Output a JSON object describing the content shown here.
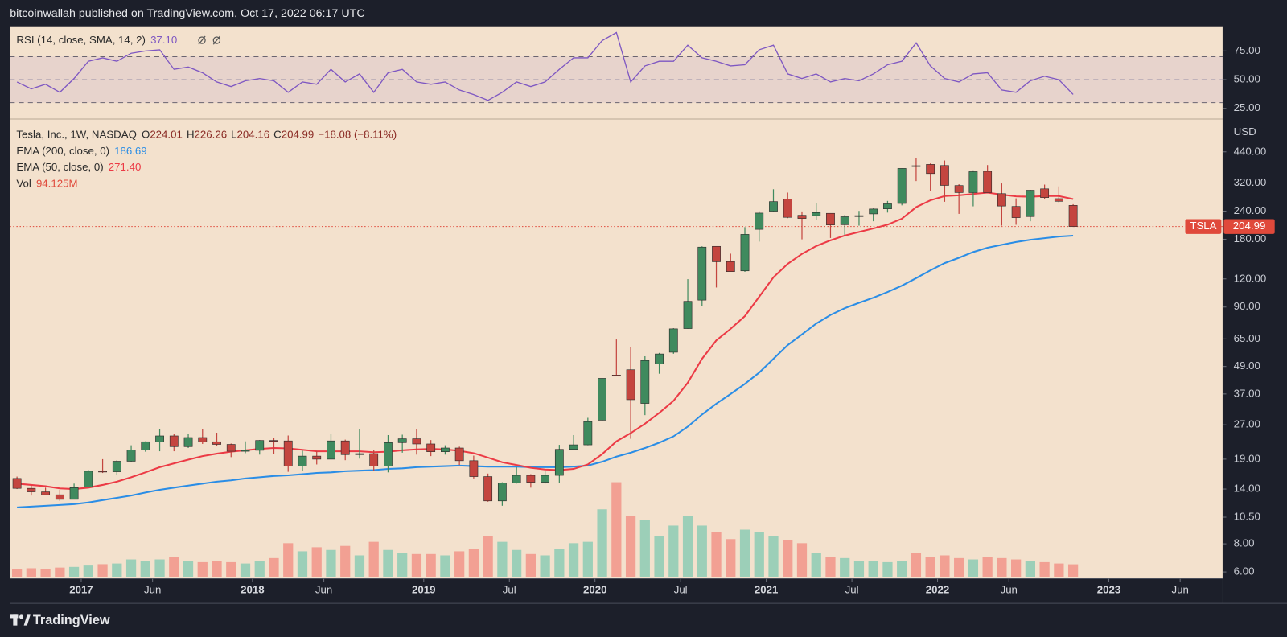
{
  "header": {
    "text": "bitcoinwallah published on TradingView.com, Oct 17, 2022 06:17 UTC"
  },
  "footer": {
    "brand": "TradingView"
  },
  "chart_data": [
    {
      "type": "line",
      "title": "RSI (14, close, SMA, 14, 2)",
      "last_label": "37.10",
      "color": "#7e57c2",
      "xlim": [
        "2016-08",
        "2023-09"
      ],
      "ylim": [
        15.7,
        96.4
      ],
      "yticks": [
        {
          "value": 75,
          "label": "75.00"
        },
        {
          "value": 50,
          "label": "50.00"
        },
        {
          "value": 25,
          "label": "25.00"
        }
      ],
      "bands": [
        30,
        70
      ],
      "midline": 50,
      "x": [
        "2016-08",
        "2016-09",
        "2016-10",
        "2016-11",
        "2016-12",
        "2017-01",
        "2017-02",
        "2017-03",
        "2017-04",
        "2017-05",
        "2017-06",
        "2017-07",
        "2017-08",
        "2017-09",
        "2017-10",
        "2017-11",
        "2017-12",
        "2018-01",
        "2018-02",
        "2018-03",
        "2018-04",
        "2018-05",
        "2018-06",
        "2018-07",
        "2018-08",
        "2018-09",
        "2018-10",
        "2018-11",
        "2018-12",
        "2019-01",
        "2019-02",
        "2019-03",
        "2019-04",
        "2019-05",
        "2019-06",
        "2019-07",
        "2019-08",
        "2019-09",
        "2019-10",
        "2019-11",
        "2019-12",
        "2020-01",
        "2020-02",
        "2020-03",
        "2020-04",
        "2020-05",
        "2020-06",
        "2020-07",
        "2020-08",
        "2020-09",
        "2020-10",
        "2020-11",
        "2020-12",
        "2021-01",
        "2021-02",
        "2021-03",
        "2021-04",
        "2021-05",
        "2021-06",
        "2021-07",
        "2021-08",
        "2021-09",
        "2021-10",
        "2021-11",
        "2021-12",
        "2022-01",
        "2022-02",
        "2022-03",
        "2022-04",
        "2022-05",
        "2022-06",
        "2022-07",
        "2022-08",
        "2022-09",
        "2022-10"
      ],
      "values": [
        48,
        42,
        46,
        39,
        51,
        66,
        69,
        66,
        73,
        75,
        76,
        59,
        61,
        56,
        48,
        44,
        49,
        51,
        49,
        39,
        48,
        46,
        59,
        48,
        55,
        39,
        56,
        59,
        48,
        46,
        48,
        41,
        37,
        32,
        39,
        48,
        44,
        48,
        59,
        69,
        69,
        84,
        91,
        48,
        62,
        66,
        66,
        80,
        69,
        66,
        62,
        63,
        76,
        80,
        55,
        51,
        55,
        48,
        51,
        49,
        55,
        63,
        66,
        82,
        62,
        51,
        48,
        55,
        56,
        41,
        39,
        49,
        53,
        50,
        37.1
      ]
    },
    {
      "type": "candlestick",
      "title": "Tesla, Inc., 1W, NASDAQ",
      "ohlc": [
        {
          "key": "O",
          "value": 224.01
        },
        {
          "key": "H",
          "value": 226.26
        },
        {
          "key": "L",
          "value": 204.16
        },
        {
          "key": "C",
          "value": 204.99
        }
      ],
      "change": "−18.08 (−8.11%)",
      "currency": "USD",
      "log_scale": true,
      "up_color": "#3f8a5e",
      "down_color": "#c4453f",
      "xlim": [
        "2016-08",
        "2023-09"
      ],
      "xticks": [
        {
          "value": "2017-01",
          "label": "2017"
        },
        {
          "value": "2017-06",
          "label": "Jun"
        },
        {
          "value": "2018-01",
          "label": "2018"
        },
        {
          "value": "2018-06",
          "label": "Jun"
        },
        {
          "value": "2019-01",
          "label": "2019"
        },
        {
          "value": "2019-07",
          "label": "Jul"
        },
        {
          "value": "2020-01",
          "label": "2020"
        },
        {
          "value": "2020-07",
          "label": "Jul"
        },
        {
          "value": "2021-01",
          "label": "2021"
        },
        {
          "value": "2021-07",
          "label": "Jul"
        },
        {
          "value": "2022-01",
          "label": "2022"
        },
        {
          "value": "2022-06",
          "label": "Jun"
        },
        {
          "value": "2023-01",
          "label": "2023"
        },
        {
          "value": "2023-06",
          "label": "Jun"
        }
      ],
      "ylim": [
        5.6,
        615
      ],
      "yticks": [
        {
          "value": 440,
          "label": "440.00"
        },
        {
          "value": 320,
          "label": "320.00"
        },
        {
          "value": 240,
          "label": "240.00"
        },
        {
          "value": 180,
          "label": "180.00"
        },
        {
          "value": 120,
          "label": "120.00"
        },
        {
          "value": 90,
          "label": "90.00"
        },
        {
          "value": 65,
          "label": "65.00"
        },
        {
          "value": 49,
          "label": "49.00"
        },
        {
          "value": 37,
          "label": "37.00"
        },
        {
          "value": 27,
          "label": "27.00"
        },
        {
          "value": 19,
          "label": "19.00"
        },
        {
          "value": 14,
          "label": "14.00"
        },
        {
          "value": 10.5,
          "label": "10.50"
        },
        {
          "value": 8,
          "label": "8.00"
        },
        {
          "value": 6,
          "label": "6.00"
        }
      ],
      "x": [
        "2016-08",
        "2016-09",
        "2016-10",
        "2016-11",
        "2016-12",
        "2017-01",
        "2017-02",
        "2017-03",
        "2017-04",
        "2017-05",
        "2017-06",
        "2017-07",
        "2017-08",
        "2017-09",
        "2017-10",
        "2017-11",
        "2017-12",
        "2018-01",
        "2018-02",
        "2018-03",
        "2018-04",
        "2018-05",
        "2018-06",
        "2018-07",
        "2018-08",
        "2018-09",
        "2018-10",
        "2018-11",
        "2018-12",
        "2019-01",
        "2019-02",
        "2019-03",
        "2019-04",
        "2019-05",
        "2019-06",
        "2019-07",
        "2019-08",
        "2019-09",
        "2019-10",
        "2019-11",
        "2019-12",
        "2020-01",
        "2020-02",
        "2020-03",
        "2020-04",
        "2020-05",
        "2020-06",
        "2020-07",
        "2020-08",
        "2020-09",
        "2020-10",
        "2020-11",
        "2020-12",
        "2021-01",
        "2021-02",
        "2021-03",
        "2021-04",
        "2021-05",
        "2021-06",
        "2021-07",
        "2021-08",
        "2021-09",
        "2021-10",
        "2021-11",
        "2021-12",
        "2022-01",
        "2022-02",
        "2022-03",
        "2022-04",
        "2022-05",
        "2022-06",
        "2022-07",
        "2022-08",
        "2022-09",
        "2022-10"
      ],
      "open": [
        15.6,
        14.1,
        13.6,
        13.2,
        12.6,
        14.3,
        16.8,
        16.7,
        18.6,
        20.9,
        22.7,
        24.1,
        21.6,
        23.7,
        22.7,
        22.1,
        20.6,
        20.8,
        23.0,
        22.9,
        17.7,
        19.6,
        19.0,
        22.9,
        19.9,
        20.1,
        17.7,
        22.5,
        23.4,
        22.2,
        20.5,
        21.3,
        18.7,
        15.9,
        12.4,
        14.9,
        16.1,
        15.0,
        16.1,
        21.0,
        22.0,
        28.3,
        44.9,
        47.4,
        33.6,
        50.3,
        56.7,
        72.2,
        96.6,
        167.4,
        143.3,
        130.3,
        199.2,
        239.8,
        271.7,
        230.0,
        229.0,
        234.6,
        208.9,
        227.0,
        233.3,
        245.6,
        259.5,
        381.7,
        386.9,
        382.6,
        311.7,
        289.9,
        360.4,
        286.9,
        251.7,
        227.0,
        301.3,
        272.6,
        254.5
      ],
      "high": [
        15.9,
        14.5,
        14.2,
        13.9,
        14.8,
        17.0,
        19.0,
        18.8,
        21.9,
        22.8,
        25.9,
        24.6,
        24.7,
        25.9,
        24.9,
        22.3,
        22.8,
        23.1,
        23.7,
        24.2,
        20.7,
        20.7,
        24.6,
        23.2,
        25.9,
        20.9,
        24.3,
        24.4,
        25.9,
        23.1,
        21.9,
        21.6,
        19.7,
        16.4,
        15.0,
        17.5,
        16.3,
        16.8,
        22.0,
        24.3,
        29.0,
        43.5,
        64.6,
        59.9,
        54.4,
        56.3,
        72.5,
        119.7,
        167.5,
        167.5,
        155.3,
        203.8,
        239.6,
        300.1,
        290.0,
        239.2,
        260.3,
        235.1,
        230.6,
        240.5,
        246.8,
        266.3,
        371.7,
        414.5,
        390.9,
        402.7,
        315.9,
        364.1,
        384.3,
        318.5,
        273.5,
        298.3,
        314.7,
        309.0,
        257.5
      ],
      "low": [
        14.0,
        13.1,
        13.2,
        12.4,
        12.6,
        14.2,
        16.5,
        16.1,
        18.5,
        20.5,
        20.6,
        20.6,
        21.3,
        22.2,
        21.7,
        19.4,
        20.2,
        19.9,
        20.0,
        16.7,
        16.8,
        18.0,
        19.0,
        18.8,
        19.1,
        16.8,
        16.6,
        20.3,
        19.9,
        19.6,
        19.9,
        17.9,
        15.6,
        12.3,
        11.8,
        14.8,
        14.2,
        14.8,
        14.9,
        20.9,
        21.9,
        28.0,
        44.5,
        23.4,
        29.8,
        45.5,
        55.8,
        72.0,
        91.0,
        109.9,
        129.0,
        129.0,
        175.7,
        239.1,
        223.3,
        179.8,
        219.8,
        182.3,
        187.6,
        206.9,
        216.3,
        236.4,
        254.5,
        326.2,
        295.4,
        264.0,
        233.3,
        252.0,
        290.3,
        206.9,
        208.7,
        216.2,
        271.8,
        262.5,
        204.16
      ],
      "close": [
        14.1,
        13.6,
        13.2,
        12.6,
        14.2,
        16.8,
        16.7,
        18.6,
        20.9,
        22.7,
        24.1,
        21.6,
        23.7,
        22.7,
        22.1,
        20.6,
        20.8,
        23.0,
        22.9,
        17.7,
        19.6,
        19.0,
        22.9,
        19.9,
        20.1,
        17.7,
        22.5,
        23.4,
        22.2,
        20.5,
        21.3,
        18.7,
        15.9,
        12.4,
        14.9,
        16.1,
        15.0,
        16.1,
        21.0,
        22.0,
        27.9,
        43.4,
        44.5,
        34.9,
        52.1,
        55.7,
        72.0,
        95.4,
        166.1,
        143.0,
        129.3,
        189.2,
        235.2,
        264.5,
        225.2,
        222.6,
        236.5,
        208.4,
        226.6,
        229.1,
        245.2,
        258.5,
        371.3,
        381.6,
        352.3,
        312.2,
        290.1,
        359.2,
        290.3,
        252.8,
        224.5,
        297.1,
        275.6,
        265.3,
        204.99
      ],
      "lines": [
        {
          "name": "EMA (200, close, 0)",
          "color": "#2a8de6",
          "last_label": "186.69",
          "values": [
            11.6,
            11.7,
            11.8,
            11.9,
            12.0,
            12.2,
            12.5,
            12.8,
            13.1,
            13.5,
            13.9,
            14.2,
            14.5,
            14.8,
            15.1,
            15.3,
            15.6,
            15.8,
            16.0,
            16.1,
            16.3,
            16.5,
            16.6,
            16.8,
            16.9,
            17.0,
            17.2,
            17.3,
            17.5,
            17.6,
            17.7,
            17.8,
            17.7,
            17.6,
            17.6,
            17.6,
            17.5,
            17.5,
            17.5,
            17.6,
            17.8,
            18.5,
            19.5,
            20.3,
            21.3,
            22.5,
            24.0,
            26.5,
            30,
            33.5,
            37,
            41,
            46,
            53,
            61,
            68,
            76,
            83,
            89,
            94,
            99,
            105,
            112,
            121,
            131,
            141,
            149,
            158,
            165,
            170,
            175,
            179,
            182,
            185,
            186.69
          ]
        },
        {
          "name": "EMA (50, close, 0)",
          "color": "#ec3a45",
          "last_label": "271.40",
          "values": [
            14.8,
            14.6,
            14.4,
            14.1,
            14.0,
            14.2,
            14.6,
            15.1,
            15.8,
            16.6,
            17.5,
            18.2,
            18.9,
            19.6,
            20.1,
            20.5,
            20.8,
            21.1,
            21.3,
            21.2,
            20.9,
            20.6,
            20.6,
            20.6,
            20.6,
            20.4,
            20.5,
            20.8,
            21.0,
            21.1,
            21.0,
            20.7,
            20.2,
            19.3,
            18.4,
            17.9,
            17.4,
            17.1,
            17.0,
            17.2,
            18.0,
            20.0,
            22.8,
            24.8,
            27.3,
            30.5,
            34.5,
            41.5,
            53,
            64,
            72,
            82,
            100,
            122,
            140,
            155,
            168,
            178,
            187,
            194,
            201,
            209,
            222,
            250,
            268,
            280,
            282,
            286,
            290,
            284,
            279,
            278,
            280,
            280,
            271.4
          ]
        }
      ],
      "volume": {
        "name": "Vol",
        "last_label": "94.125M",
        "label_color": "#e0493b",
        "vlim": [
          0,
          1000
        ],
        "up_color": "#9ccfb8",
        "down_color": "#f2a093",
        "values": [
          60,
          65,
          60,
          70,
          75,
          85,
          95,
          100,
          130,
          120,
          130,
          150,
          120,
          110,
          120,
          110,
          100,
          120,
          140,
          250,
          190,
          220,
          200,
          230,
          160,
          260,
          200,
          180,
          170,
          170,
          160,
          190,
          210,
          300,
          260,
          200,
          170,
          160,
          210,
          250,
          260,
          500,
          700,
          450,
          420,
          300,
          380,
          450,
          380,
          330,
          280,
          350,
          330,
          300,
          270,
          250,
          180,
          150,
          140,
          120,
          120,
          110,
          120,
          180,
          150,
          160,
          140,
          130,
          150,
          140,
          130,
          120,
          110,
          100,
          94.125
        ]
      },
      "last_price": {
        "symbol": "TSLA",
        "value": 204.99,
        "color": "#e0493b"
      }
    }
  ]
}
